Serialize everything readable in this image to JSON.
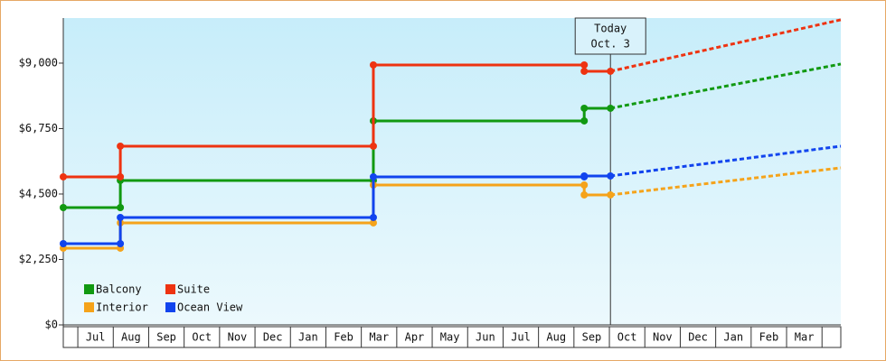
{
  "chart_data": {
    "type": "step-line",
    "xlim": [
      -0.41,
      21.53
    ],
    "xticks": [
      {
        "value": 0.5,
        "label": "Jul"
      },
      {
        "value": 1.5,
        "label": "Aug"
      },
      {
        "value": 2.5,
        "label": "Sep"
      },
      {
        "value": 3.5,
        "label": "Oct"
      },
      {
        "value": 4.5,
        "label": "Nov"
      },
      {
        "value": 5.5,
        "label": "Dec"
      },
      {
        "value": 6.5,
        "label": "Jan"
      },
      {
        "value": 7.5,
        "label": "Feb"
      },
      {
        "value": 8.5,
        "label": "Mar"
      },
      {
        "value": 9.5,
        "label": "Apr"
      },
      {
        "value": 10.5,
        "label": "May"
      },
      {
        "value": 11.5,
        "label": "Jun"
      },
      {
        "value": 12.5,
        "label": "Jul"
      },
      {
        "value": 13.5,
        "label": "Aug"
      },
      {
        "value": 14.5,
        "label": "Sep"
      },
      {
        "value": 15.5,
        "label": "Oct"
      },
      {
        "value": 16.5,
        "label": "Nov"
      },
      {
        "value": 17.5,
        "label": "Dec"
      },
      {
        "value": 18.5,
        "label": "Jan"
      },
      {
        "value": 19.5,
        "label": "Feb"
      },
      {
        "value": 20.5,
        "label": "Mar"
      }
    ],
    "ylim": [
      0,
      10550
    ],
    "yticks": [
      {
        "value": 0,
        "label": "$0"
      },
      {
        "value": 2250,
        "label": "$2,250"
      },
      {
        "value": 4500,
        "label": "$4,500"
      },
      {
        "value": 6750,
        "label": "$6,750"
      },
      {
        "value": 9000,
        "label": "$9,000"
      }
    ],
    "annotation": {
      "lines": [
        "Today",
        "Oct. 3"
      ],
      "x": 15.03
    },
    "legend": "lower-left",
    "series": [
      {
        "name": "Balcony",
        "color": "#119911",
        "x": [
          -0.41,
          1.2,
          1.2,
          8.34,
          8.34,
          14.29,
          14.29,
          15.03
        ],
        "values": [
          4034,
          4034,
          4966,
          4966,
          7014,
          7014,
          7448,
          7448
        ],
        "forecast": {
          "x": [
            15.03,
            21.53
          ],
          "values": [
            7448,
            8969
          ]
        }
      },
      {
        "name": "Suite",
        "color": "#ee3311",
        "x": [
          -0.41,
          1.2,
          1.2,
          8.34,
          8.34,
          14.29,
          14.29,
          15.03
        ],
        "values": [
          5090,
          5090,
          6145,
          6145,
          8938,
          8938,
          8720,
          8720
        ],
        "forecast": {
          "x": [
            15.03,
            21.53
          ],
          "values": [
            8720,
            10490
          ]
        }
      },
      {
        "name": "Interior",
        "color": "#f5a31a",
        "x": [
          -0.41,
          1.2,
          1.2,
          8.34,
          8.34,
          14.29,
          14.29,
          15.03
        ],
        "values": [
          2638,
          2638,
          3507,
          3507,
          4810,
          4810,
          4469,
          4469
        ],
        "forecast": {
          "x": [
            15.03,
            21.53
          ],
          "values": [
            4469,
            5400
          ]
        }
      },
      {
        "name": "Ocean View",
        "color": "#1144ee",
        "x": [
          -0.41,
          1.2,
          1.2,
          8.34,
          8.34,
          14.29,
          14.29,
          15.03
        ],
        "values": [
          2793,
          2793,
          3693,
          3693,
          5090,
          5090,
          5121,
          5121
        ],
        "forecast": {
          "x": [
            15.03,
            21.53
          ],
          "values": [
            5121,
            6145
          ]
        }
      }
    ]
  }
}
